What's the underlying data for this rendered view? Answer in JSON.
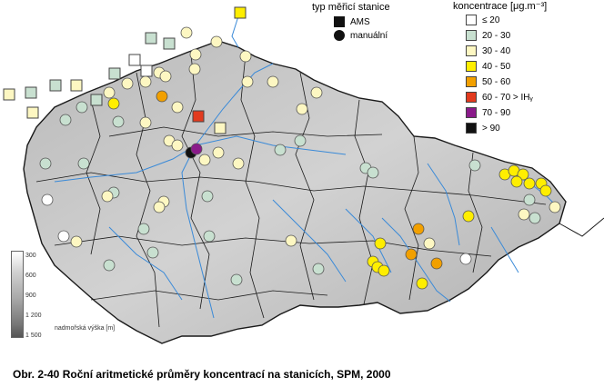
{
  "station_type": {
    "title": "typ měřicí stanice",
    "ams": "AMS",
    "manual": "manuální"
  },
  "concentration_legend": {
    "title": "koncentrace [μg.m⁻³]",
    "classes": [
      {
        "label": "≤ 20",
        "color": "#ffffff"
      },
      {
        "label": "20 - 30",
        "color": "#c8e0d0"
      },
      {
        "label": "30 - 40",
        "color": "#fdf7c2"
      },
      {
        "label": "40 - 50",
        "color": "#ffee00"
      },
      {
        "label": "50 - 60",
        "color": "#f2a000"
      },
      {
        "label": "60 - 70 > IHᵧ",
        "color": "#e23a1e"
      },
      {
        "label": "70 - 90",
        "color": "#8a1a8a"
      },
      {
        "label": "> 90",
        "color": "#111111"
      }
    ]
  },
  "elevation_legend": {
    "ticks": [
      "300",
      "600",
      "900",
      "1 200",
      "1 500"
    ],
    "label": "nadmořská výška [m]"
  },
  "caption": "Obr. 2-40  Roční aritmetické průměry koncentrací na stanicích, SPM, 2000",
  "colors": {
    "terrain": "#c4c4c4",
    "border": "#1a1a1a",
    "river": "#3a8ad8"
  }
}
